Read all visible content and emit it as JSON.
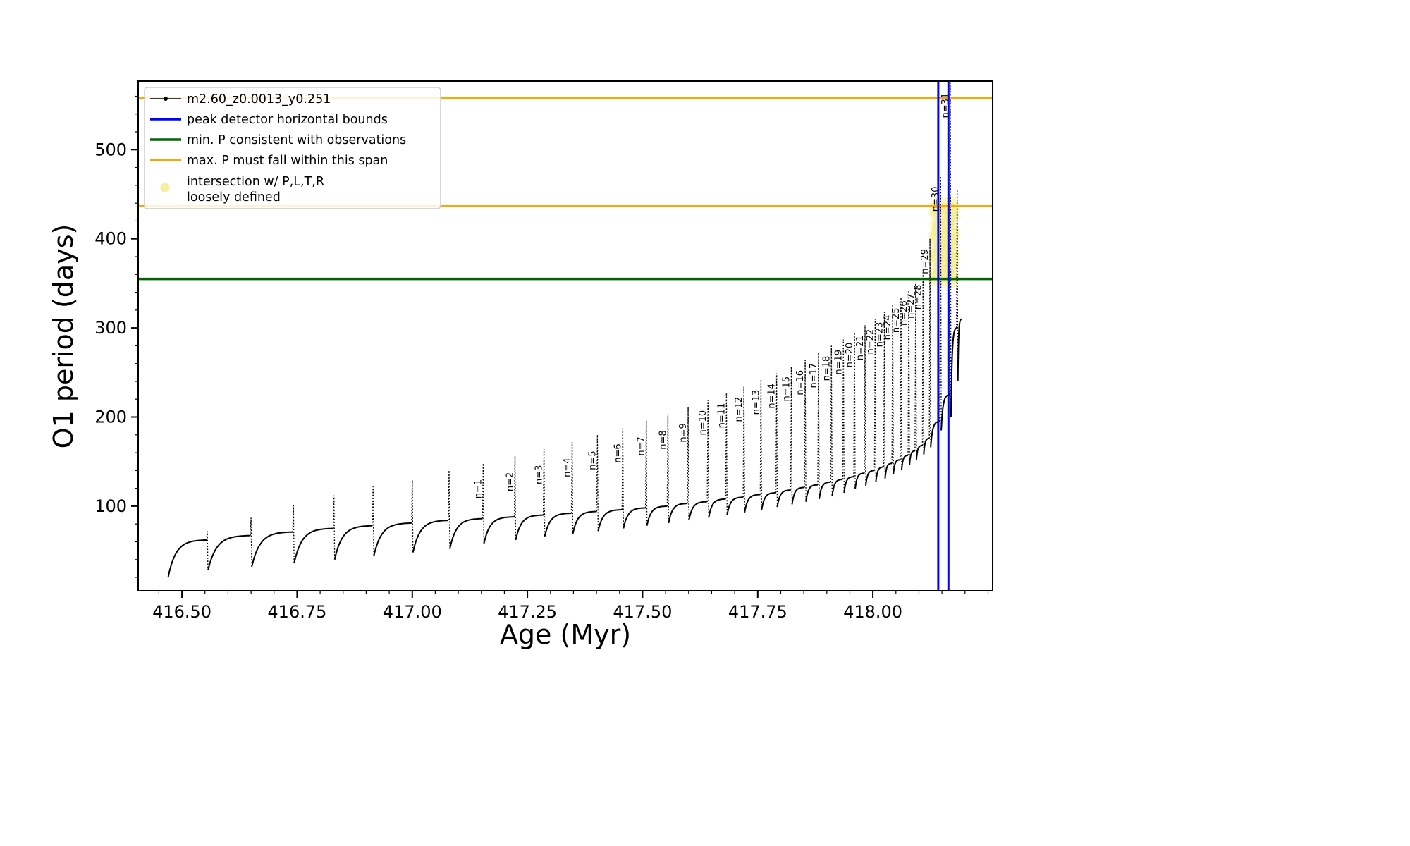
{
  "chart_data": {
    "type": "line",
    "title": "",
    "xlabel": "Age (Myr)",
    "ylabel": "O1 period (days)",
    "xlim": [
      416.405,
      418.26
    ],
    "ylim": [
      5,
      577
    ],
    "xticks": [
      416.5,
      416.75,
      417.0,
      417.25,
      417.5,
      417.75,
      418.0
    ],
    "xtick_labels": [
      "416.50",
      "416.75",
      "417.00",
      "417.25",
      "417.50",
      "417.75",
      "418.00"
    ],
    "yticks": [
      100,
      200,
      300,
      400,
      500
    ],
    "ytick_labels": [
      "100",
      "200",
      "300",
      "400",
      "500"
    ],
    "x_minor_step": 0.05,
    "y_minor_step": 20,
    "grid": false,
    "legend_position": "upper left",
    "series": {
      "name": "m2.60_z0.0013_y0.251",
      "color": "#000000",
      "marker": "point",
      "start": {
        "age": 416.47,
        "period": 20
      },
      "end": {
        "age": 418.192,
        "period": 310
      },
      "pulses": [
        {
          "age": 416.555,
          "peak": 72,
          "base": 62,
          "dip": 28,
          "label": ""
        },
        {
          "age": 416.65,
          "peak": 87,
          "base": 67,
          "dip": 32,
          "label": ""
        },
        {
          "age": 416.742,
          "peak": 101,
          "base": 71,
          "dip": 36,
          "label": ""
        },
        {
          "age": 416.83,
          "peak": 112,
          "base": 75,
          "dip": 40,
          "label": ""
        },
        {
          "age": 416.915,
          "peak": 122,
          "base": 78,
          "dip": 44,
          "label": ""
        },
        {
          "age": 417.0,
          "peak": 129,
          "base": 81,
          "dip": 48,
          "label": ""
        },
        {
          "age": 417.08,
          "peak": 140,
          "base": 84,
          "dip": 52,
          "label": ""
        },
        {
          "age": 417.154,
          "peak": 148,
          "base": 86,
          "dip": 58,
          "label": "n=1"
        },
        {
          "age": 417.223,
          "peak": 156,
          "base": 88,
          "dip": 62,
          "label": "n=2"
        },
        {
          "age": 417.286,
          "peak": 164,
          "base": 90,
          "dip": 66,
          "label": "n=3"
        },
        {
          "age": 417.347,
          "peak": 172,
          "base": 92,
          "dip": 69,
          "label": "n=4"
        },
        {
          "age": 417.402,
          "peak": 180,
          "base": 94,
          "dip": 72,
          "label": "n=5"
        },
        {
          "age": 417.457,
          "peak": 188,
          "base": 96,
          "dip": 75,
          "label": "n=6"
        },
        {
          "age": 417.508,
          "peak": 196,
          "base": 98,
          "dip": 78,
          "label": "n=7"
        },
        {
          "age": 417.555,
          "peak": 203,
          "base": 100,
          "dip": 81,
          "label": "n=8"
        },
        {
          "age": 417.599,
          "peak": 211,
          "base": 103,
          "dip": 84,
          "label": "n=9"
        },
        {
          "age": 417.642,
          "peak": 219,
          "base": 105,
          "dip": 87,
          "label": "n=10"
        },
        {
          "age": 417.682,
          "peak": 227,
          "base": 108,
          "dip": 90,
          "label": "n=11"
        },
        {
          "age": 417.72,
          "peak": 234,
          "base": 110,
          "dip": 93,
          "label": "n=12"
        },
        {
          "age": 417.757,
          "peak": 242,
          "base": 113,
          "dip": 96,
          "label": "n=13"
        },
        {
          "age": 417.791,
          "peak": 249,
          "base": 115,
          "dip": 99,
          "label": "n=14"
        },
        {
          "age": 417.823,
          "peak": 257,
          "base": 118,
          "dip": 102,
          "label": "n=15"
        },
        {
          "age": 417.853,
          "peak": 264,
          "base": 121,
          "dip": 105,
          "label": "n=16"
        },
        {
          "age": 417.882,
          "peak": 272,
          "base": 124,
          "dip": 108,
          "label": "n=17"
        },
        {
          "age": 417.91,
          "peak": 280,
          "base": 127,
          "dip": 111,
          "label": "n=18"
        },
        {
          "age": 417.936,
          "peak": 287,
          "base": 130,
          "dip": 115,
          "label": "n=19"
        },
        {
          "age": 417.96,
          "peak": 295,
          "base": 133,
          "dip": 119,
          "label": "n=20"
        },
        {
          "age": 417.983,
          "peak": 303,
          "base": 137,
          "dip": 123,
          "label": "n=21"
        },
        {
          "age": 418.005,
          "peak": 310,
          "base": 140,
          "dip": 127,
          "label": "n=22"
        },
        {
          "age": 418.025,
          "peak": 318,
          "base": 144,
          "dip": 131,
          "label": "n=23"
        },
        {
          "age": 418.043,
          "peak": 326,
          "base": 148,
          "dip": 136,
          "label": "n=24"
        },
        {
          "age": 418.061,
          "peak": 334,
          "base": 152,
          "dip": 141,
          "label": "n=25"
        },
        {
          "age": 418.078,
          "peak": 342,
          "base": 157,
          "dip": 146,
          "label": "n=26"
        },
        {
          "age": 418.093,
          "peak": 350,
          "base": 162,
          "dip": 152,
          "label": "n=27"
        },
        {
          "age": 418.109,
          "peak": 360,
          "base": 168,
          "dip": 158,
          "label": "n=28"
        },
        {
          "age": 418.124,
          "peak": 400,
          "base": 176,
          "dip": 166,
          "label": "n=29"
        },
        {
          "age": 418.147,
          "peak": 470,
          "base": 195,
          "dip": 185,
          "label": "n=30"
        },
        {
          "age": 418.168,
          "peak": 575,
          "base": 225,
          "dip": 200,
          "label": "n=31"
        },
        {
          "age": 418.183,
          "peak": 455,
          "base": 300,
          "dip": 240,
          "label": ""
        }
      ]
    },
    "hlines": [
      {
        "y": 355,
        "color": "#006400",
        "width": 3.5,
        "name": "min. P consistent with observations"
      },
      {
        "y": 437,
        "color": "#ffa500",
        "width": 2,
        "name": "max. P span lower bound"
      },
      {
        "y": 558,
        "color": "#ffa500",
        "width": 2,
        "name": "max. P span upper bound"
      }
    ],
    "vlines": [
      {
        "x": 418.142,
        "color": "#0000ff",
        "width": 3,
        "name": "peak detector left bound"
      },
      {
        "x": 418.164,
        "color": "#0000ff",
        "width": 3,
        "name": "peak detector right bound"
      }
    ],
    "intersection_region": {
      "x": [
        418.13,
        418.18
      ],
      "y": [
        352,
        440
      ],
      "color": "#f2e96b",
      "name": "intersection w/ P,L,T,R loosely defined"
    }
  },
  "legend": {
    "items": [
      {
        "label": "m2.60_z0.0013_y0.251",
        "swatch": "line-marker",
        "color": "#000000",
        "width": 1.6
      },
      {
        "label": "peak detector horizontal bounds",
        "swatch": "line",
        "color": "#0000ff",
        "width": 3.5
      },
      {
        "label": "min. P consistent with observations",
        "swatch": "line",
        "color": "#006400",
        "width": 3.5
      },
      {
        "label": "max. P must fall within this span",
        "swatch": "line",
        "color": "#ffa500",
        "width": 2
      },
      {
        "label": "intersection w/ P,L,T,R\nloosely defined",
        "swatch": "dot",
        "color": "#f5ee9e",
        "width": 0
      }
    ]
  }
}
